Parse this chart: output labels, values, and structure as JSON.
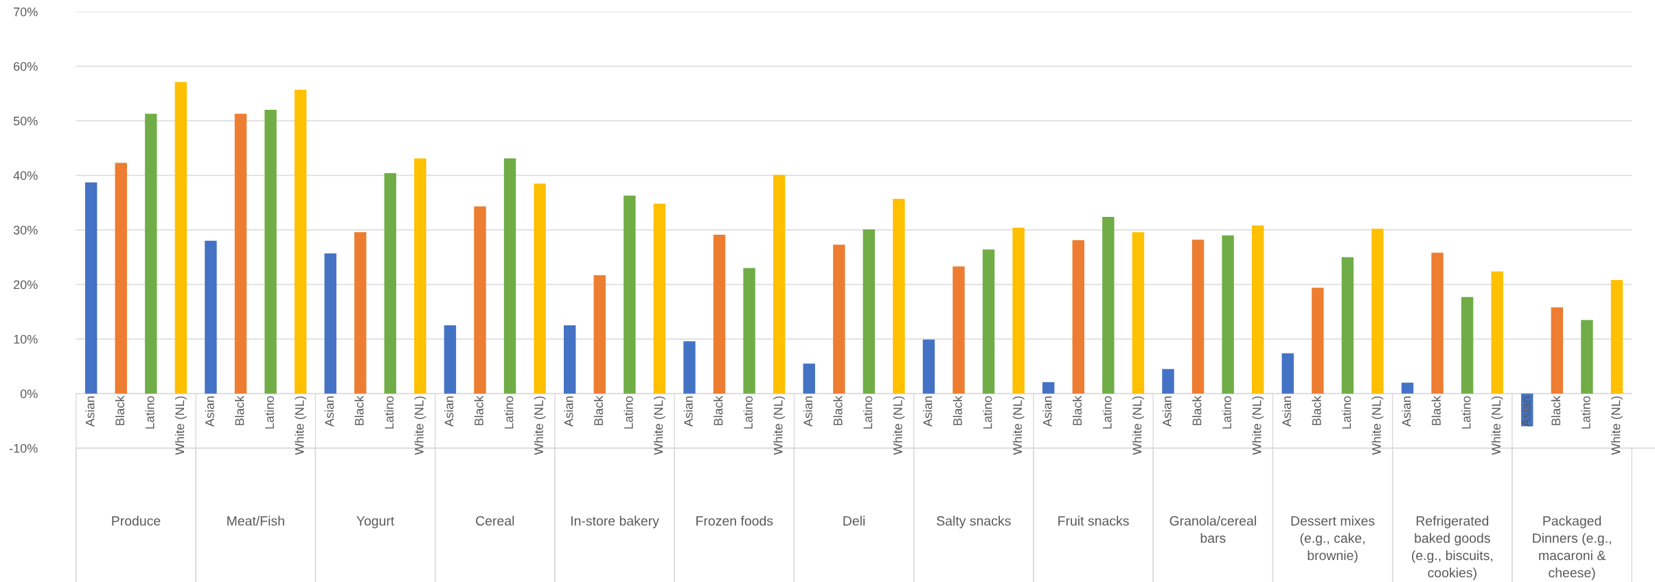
{
  "chart_data": {
    "type": "bar",
    "categories": [
      "Produce",
      "Meat/Fish",
      "Yogurt",
      "Cereal",
      "In-store bakery",
      "Frozen foods",
      "Deli",
      "Salty snacks",
      "Fruit snacks",
      "Granola/cereal bars",
      "Dessert mixes (e.g., cake, brownie)",
      "Refrigerated baked goods (e.g., biscuits, cookies)",
      "Packaged Dinners (e.g., macaroni & cheese)"
    ],
    "series": [
      {
        "name": "Asian",
        "color": "#4472c4",
        "values": [
          38.7,
          28,
          25.7,
          12.5,
          12.5,
          9.6,
          5.5,
          9.9,
          2.1,
          4.5,
          7.4,
          2,
          -6
        ]
      },
      {
        "name": "Black",
        "color": "#ed7d31",
        "values": [
          42.3,
          51.3,
          29.6,
          34.3,
          21.7,
          29.1,
          27.3,
          23.3,
          28.1,
          28.2,
          19.4,
          25.8,
          15.8
        ]
      },
      {
        "name": "Latino",
        "color": "#70ad47",
        "values": [
          51.3,
          52,
          40.4,
          43.1,
          36.3,
          23,
          30.1,
          26.4,
          32.4,
          29,
          25,
          17.7,
          13.5
        ]
      },
      {
        "name": "White (NL)",
        "color": "#ffc000",
        "values": [
          57.1,
          55.7,
          43.1,
          38.5,
          34.8,
          40.1,
          35.7,
          30.4,
          29.6,
          30.8,
          30.2,
          22.4,
          20.8
        ]
      }
    ],
    "ylim": [
      -10,
      70
    ],
    "yticks": [
      {
        "value": -10,
        "label": "-10%"
      },
      {
        "value": 0,
        "label": "0%"
      },
      {
        "value": 10,
        "label": "10%"
      },
      {
        "value": 20,
        "label": "20%"
      },
      {
        "value": 30,
        "label": "30%"
      },
      {
        "value": 40,
        "label": "40%"
      },
      {
        "value": 50,
        "label": "50%"
      },
      {
        "value": 60,
        "label": "60%"
      },
      {
        "value": 70,
        "label": "70%"
      }
    ],
    "grid": "y",
    "legend": false
  }
}
